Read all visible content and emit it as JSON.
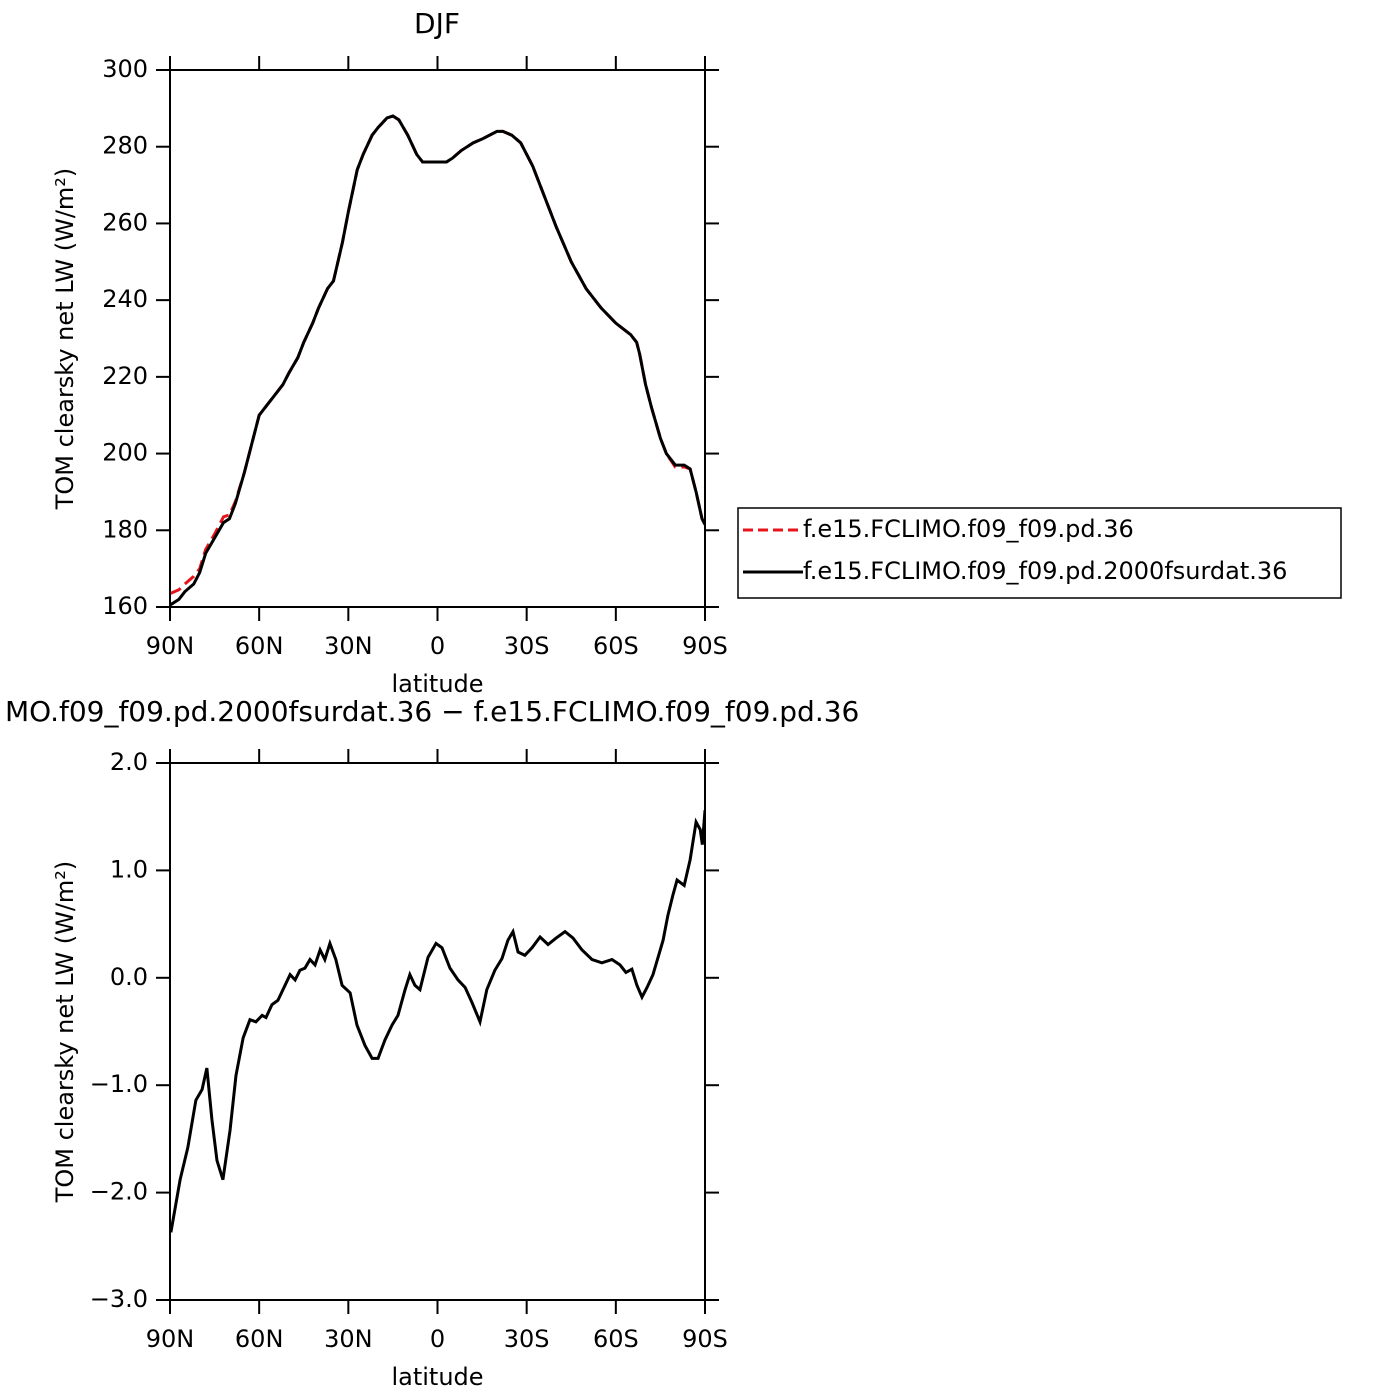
{
  "chart_data": [
    {
      "type": "line",
      "title": "DJF",
      "xlabel": "latitude",
      "ylabel": "TOM clearsky net LW (W/m²)",
      "xlim": [
        90,
        -90
      ],
      "ylim": [
        160,
        300
      ],
      "xticks": [
        {
          "value": 90,
          "label": "90N"
        },
        {
          "value": 60,
          "label": "60N"
        },
        {
          "value": 30,
          "label": "30N"
        },
        0,
        {
          "value": -30,
          "label": "30S"
        },
        {
          "value": -60,
          "label": "60S"
        },
        {
          "value": -90,
          "label": "90S"
        }
      ],
      "yticks": [
        160,
        180,
        200,
        220,
        240,
        260,
        280,
        300
      ],
      "legend": "right",
      "x": [
        90,
        87,
        85,
        82,
        80,
        78,
        75,
        72,
        70,
        68,
        65,
        62,
        60,
        57,
        55,
        52,
        50,
        47,
        45,
        42,
        40,
        37,
        35,
        32,
        30,
        27,
        25,
        22,
        20,
        17,
        15,
        13,
        10,
        7,
        5,
        2,
        0,
        -3,
        -5,
        -8,
        -12,
        -15,
        -20,
        -22,
        -25,
        -28,
        -32,
        -35,
        -40,
        -45,
        -50,
        -55,
        -60,
        -65,
        -67,
        -68,
        -70,
        -72,
        -75,
        -77,
        -80,
        -83,
        -85,
        -87,
        -89,
        -90
      ],
      "series": [
        {
          "name": "f.e15.FCLIMO.f09_f09.pd.36",
          "color": "#e8141c",
          "linestyle": "dashed",
          "values": [
            163.5,
            164.5,
            166,
            168,
            170,
            175,
            179,
            183.5,
            184,
            187.5,
            195,
            204,
            210,
            213,
            215,
            218,
            221,
            225,
            229,
            234,
            238,
            243,
            245,
            255,
            263,
            274,
            278,
            283,
            285,
            287.5,
            288,
            287,
            283,
            278,
            276,
            276,
            276,
            276,
            277,
            279,
            281,
            282,
            284,
            284,
            283,
            281,
            275,
            269,
            259,
            250,
            243,
            238,
            234,
            231,
            229,
            226,
            218,
            212,
            204,
            200,
            196.5,
            196.5,
            196,
            190,
            183,
            181.5
          ]
        },
        {
          "name": "f.e15.FCLIMO.f09_f09.pd.2000fsurdat.36",
          "color": "#000000",
          "linestyle": "solid",
          "values": [
            160.5,
            162,
            164,
            166,
            169,
            174,
            178,
            182,
            183,
            187,
            195,
            204,
            210,
            213,
            215,
            218,
            221,
            225,
            229,
            234,
            238,
            243,
            245,
            255,
            263,
            274,
            278,
            283,
            285,
            287.5,
            288,
            287,
            283,
            278,
            276,
            276,
            276,
            276,
            277,
            279,
            281,
            282,
            284,
            284,
            283,
            281,
            275,
            269,
            259,
            250,
            243,
            238,
            234,
            231,
            229,
            226,
            218,
            212,
            204,
            200,
            197,
            197,
            196,
            190,
            183,
            181.5
          ]
        }
      ]
    },
    {
      "type": "line",
      "title": "MO.f09_f09.pd.2000fsurdat.36 − f.e15.FCLIMO.f09_f09.pd.36",
      "xlabel": "latitude",
      "ylabel": "TOM clearsky net LW (W/m²)",
      "xlim": [
        90,
        -90
      ],
      "ylim": [
        -3,
        2
      ],
      "xticks": [
        {
          "value": 90,
          "label": "90N"
        },
        {
          "value": 60,
          "label": "60N"
        },
        {
          "value": 30,
          "label": "30N"
        },
        0,
        {
          "value": -30,
          "label": "30S"
        },
        {
          "value": -60,
          "label": "60S"
        },
        {
          "value": -90,
          "label": "90S"
        }
      ],
      "yticks": [
        {
          "value": -3,
          "label": "−3.0"
        },
        {
          "value": -2,
          "label": "−2.0"
        },
        {
          "value": -1,
          "label": "−1.0"
        },
        {
          "value": 0,
          "label": "0.0"
        },
        {
          "value": 1,
          "label": "1.0"
        },
        {
          "value": 2,
          "label": "2.0"
        }
      ],
      "x": [
        89.7,
        86.6,
        84,
        81.3,
        79.2,
        77.6,
        75.9,
        74.2,
        72.2,
        69.8,
        67.8,
        65.4,
        63.1,
        61.1,
        59,
        57.7,
        55.7,
        53.7,
        51.3,
        49.6,
        47.9,
        46.3,
        44.6,
        42.9,
        41.2,
        39.5,
        37.9,
        36.2,
        34.2,
        32.1,
        29.4,
        27.1,
        24.4,
        22,
        20,
        17.7,
        15.3,
        13.3,
        10.9,
        9.3,
        7.6,
        5.9,
        3.2,
        0.5,
        -1.5,
        -4.2,
        -6.9,
        -9.3,
        -11.6,
        -14.3,
        -16.6,
        -19.3,
        -21.7,
        -23.7,
        -25.4,
        -27.1,
        -29.4,
        -31.8,
        -34.5,
        -37.2,
        -39.9,
        -42.9,
        -45.6,
        -48.6,
        -52,
        -55.3,
        -58.7,
        -61.4,
        -63.4,
        -65.4,
        -67.1,
        -68.8,
        -70.5,
        -72.5,
        -74.2,
        -75.9,
        -77.5,
        -79.2,
        -80.6,
        -83,
        -85,
        -87,
        -88.4,
        -89.1,
        -90
      ],
      "series": [
        {
          "name": "difference",
          "color": "#000000",
          "linestyle": "solid",
          "values": [
            -2.37,
            -1.88,
            -1.58,
            -1.14,
            -1.04,
            -0.84,
            -1.32,
            -1.7,
            -1.88,
            -1.42,
            -0.91,
            -0.56,
            -0.39,
            -0.41,
            -0.35,
            -0.37,
            -0.25,
            -0.21,
            -0.07,
            0.03,
            -0.02,
            0.07,
            0.09,
            0.17,
            0.12,
            0.26,
            0.17,
            0.32,
            0.17,
            -0.07,
            -0.14,
            -0.44,
            -0.63,
            -0.75,
            -0.75,
            -0.58,
            -0.44,
            -0.35,
            -0.11,
            0.03,
            -0.07,
            -0.11,
            0.19,
            0.32,
            0.28,
            0.09,
            -0.02,
            -0.09,
            -0.23,
            -0.41,
            -0.11,
            0.07,
            0.18,
            0.35,
            0.43,
            0.24,
            0.21,
            0.28,
            0.38,
            0.31,
            0.37,
            0.43,
            0.37,
            0.26,
            0.17,
            0.14,
            0.17,
            0.12,
            0.05,
            0.08,
            -0.07,
            -0.18,
            -0.09,
            0.03,
            0.19,
            0.35,
            0.58,
            0.77,
            0.91,
            0.86,
            1.1,
            1.45,
            1.38,
            1.24,
            1.56
          ]
        }
      ]
    }
  ]
}
